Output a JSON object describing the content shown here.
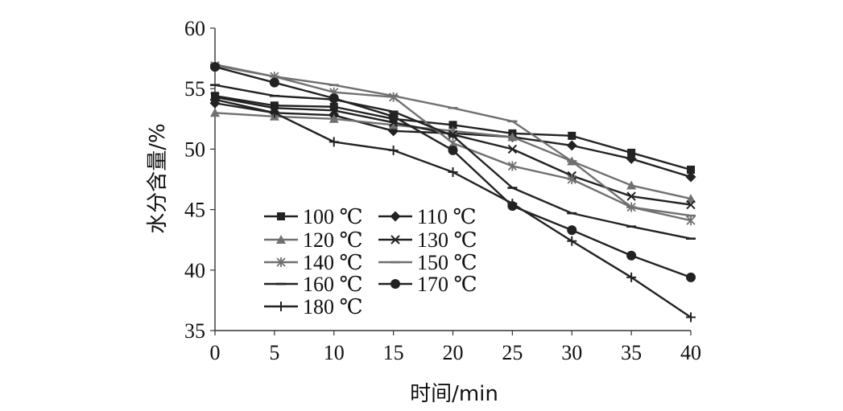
{
  "chart_data": {
    "type": "line",
    "title": "",
    "xlabel": "时间/min",
    "ylabel": "水分含量/%",
    "x": [
      0,
      5,
      10,
      15,
      20,
      25,
      30,
      35,
      40
    ],
    "xlim": [
      0,
      40
    ],
    "ylim": [
      35,
      60
    ],
    "x_ticks": [
      0,
      5,
      10,
      15,
      20,
      25,
      30,
      35,
      40
    ],
    "y_ticks": [
      35,
      40,
      45,
      50,
      55,
      60
    ],
    "grid": false,
    "legend_position": "lower-left inside plot",
    "series": [
      {
        "name": "100 ℃",
        "color": "#222222",
        "marker": "square",
        "values": [
          54.4,
          53.6,
          53.5,
          52.5,
          52.0,
          51.3,
          51.1,
          49.7,
          48.3
        ]
      },
      {
        "name": "110 ℃",
        "color": "#222222",
        "marker": "diamond",
        "values": [
          53.8,
          53.0,
          52.8,
          51.5,
          51.3,
          51.0,
          50.3,
          49.2,
          47.7
        ]
      },
      {
        "name": "120 ℃",
        "color": "#707070",
        "marker": "triangle",
        "values": [
          53.0,
          52.7,
          52.5,
          52.0,
          51.5,
          51.0,
          49.0,
          47.0,
          45.9
        ]
      },
      {
        "name": "130 ℃",
        "color": "#222222",
        "marker": "x",
        "values": [
          54.3,
          53.4,
          53.2,
          52.2,
          51.2,
          50.0,
          47.8,
          46.1,
          45.4
        ]
      },
      {
        "name": "140 ℃",
        "color": "#707070",
        "marker": "asterisk",
        "values": [
          56.9,
          56.0,
          54.7,
          54.3,
          50.5,
          48.6,
          47.5,
          45.2,
          44.1
        ]
      },
      {
        "name": "150 ℃",
        "color": "#707070",
        "marker": "dash",
        "values": [
          57.0,
          56.0,
          55.3,
          54.4,
          53.4,
          52.3,
          49.0,
          45.2,
          44.5
        ]
      },
      {
        "name": "160 ℃",
        "color": "#222222",
        "marker": "dash",
        "values": [
          55.3,
          54.4,
          54.1,
          53.1,
          51.1,
          46.8,
          44.7,
          43.6,
          42.6
        ]
      },
      {
        "name": "170 ℃",
        "color": "#222222",
        "marker": "circle",
        "values": [
          56.8,
          55.5,
          54.2,
          52.7,
          49.9,
          45.3,
          43.3,
          41.2,
          39.4
        ]
      },
      {
        "name": "180 ℃",
        "color": "#222222",
        "marker": "plus",
        "values": [
          54.1,
          53.0,
          50.6,
          49.9,
          48.1,
          45.5,
          42.4,
          39.4,
          36.1
        ]
      }
    ]
  }
}
